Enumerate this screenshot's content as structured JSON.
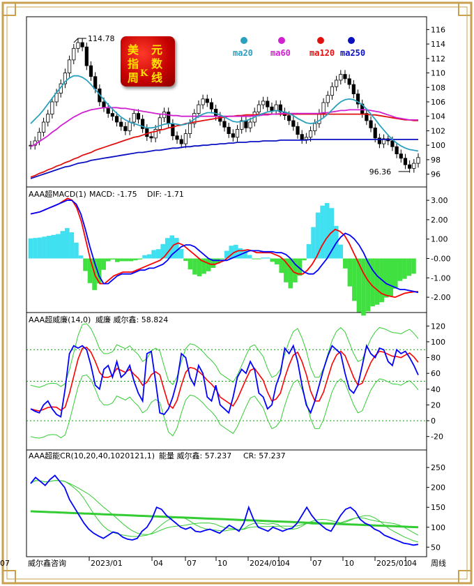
{
  "brand": {
    "logo_chars": [
      "美",
      "元",
      "指",
      "数",
      "周",
      "K",
      "线"
    ]
  },
  "colors": {
    "ma20": "#2aa0bf",
    "ma60": "#d020d0",
    "ma120": "#e01010",
    "ma250": "#0a10c0",
    "macd": "#0000ff",
    "dif": "#ff0000",
    "up": "#000000",
    "grid": "#00a000",
    "frame": "#c8a050"
  },
  "chart_data": [
    {
      "type": "candlestick",
      "legend": [
        {
          "name": "ma20",
          "color": "#2aa0bf"
        },
        {
          "name": "ma60",
          "color": "#d020d0"
        },
        {
          "name": "ma120",
          "color": "#e01010"
        },
        {
          "name": "ma250",
          "color": "#0a10c0"
        }
      ],
      "annotations": {
        "high": "114.78",
        "low": "96.36"
      },
      "y_ticks": [
        "116",
        "114",
        "112",
        "110",
        "108",
        "106",
        "104",
        "102",
        "100",
        "98",
        "96"
      ],
      "ylim": [
        95,
        117
      ],
      "close": [
        100.0,
        100.6,
        101.8,
        103.2,
        104.3,
        106.0,
        107.2,
        108.5,
        110.0,
        111.8,
        113.4,
        114.2,
        113.6,
        111.0,
        109.5,
        107.8,
        106.0,
        105.2,
        104.4,
        104.0,
        103.2,
        102.6,
        102.0,
        103.2,
        104.4,
        103.6,
        102.3,
        101.2,
        101.0,
        102.2,
        103.8,
        104.6,
        103.0,
        101.3,
        100.8,
        100.2,
        101.6,
        103.0,
        104.4,
        105.6,
        106.4,
        105.9,
        105.0,
        104.0,
        103.3,
        102.5,
        101.6,
        101.1,
        102.2,
        103.4,
        102.4,
        103.2,
        104.6,
        105.6,
        106.1,
        105.3,
        104.8,
        105.6,
        104.6,
        104.1,
        103.4,
        102.6,
        101.5,
        100.8,
        101.1,
        102.0,
        103.0,
        104.4,
        105.9,
        106.9,
        108.1,
        109.0,
        109.8,
        109.2,
        108.4,
        107.1,
        105.7,
        104.4,
        103.4,
        102.4,
        101.0,
        100.2,
        100.9,
        100.6,
        99.8,
        98.8,
        98.2,
        97.3,
        96.8,
        97.5,
        98.3
      ],
      "ma20": [
        103.0,
        103.6,
        104.2,
        104.9,
        105.7,
        106.5,
        107.3,
        108.0,
        108.8,
        109.3,
        109.6,
        109.6,
        109.4,
        109.0,
        108.4,
        107.7,
        107.0,
        106.3,
        105.6,
        105.0,
        104.4,
        103.9,
        103.5,
        103.2,
        103.0,
        102.8,
        102.6,
        102.4,
        102.4,
        102.5,
        102.7,
        102.9,
        103.0,
        103.0,
        102.9,
        102.8,
        102.9,
        103.2,
        103.6,
        104.0,
        104.3,
        104.5,
        104.5,
        104.4,
        104.2,
        103.9,
        103.6,
        103.3,
        103.2,
        103.3,
        103.4,
        103.6,
        103.9,
        104.2,
        104.4,
        104.6,
        104.7,
        104.8,
        104.7,
        104.6,
        104.4,
        104.1,
        103.7,
        103.4,
        103.1,
        103.0,
        103.1,
        103.4,
        103.8,
        104.3,
        104.9,
        105.5,
        106.0,
        106.3,
        106.4,
        106.3,
        106.0,
        105.6,
        105.0,
        104.3,
        103.6,
        102.8,
        102.1,
        101.4,
        100.8,
        100.3,
        99.9,
        99.6,
        99.4,
        99.3,
        99.2
      ],
      "ma60": [
        99.8,
        100.1,
        100.5,
        100.9,
        101.3,
        101.8,
        102.2,
        102.7,
        103.1,
        103.5,
        103.9,
        104.2,
        104.5,
        104.7,
        104.9,
        105.0,
        105.1,
        105.2,
        105.2,
        105.2,
        105.2,
        105.1,
        105.1,
        105.0,
        104.9,
        104.8,
        104.7,
        104.6,
        104.5,
        104.4,
        104.3,
        104.3,
        104.2,
        104.1,
        104.1,
        104.0,
        104.0,
        104.0,
        104.0,
        104.0,
        104.0,
        104.0,
        104.0,
        104.0,
        104.0,
        104.0,
        104.0,
        104.0,
        104.0,
        104.0,
        104.0,
        104.0,
        104.1,
        104.1,
        104.2,
        104.2,
        104.3,
        104.3,
        104.4,
        104.4,
        104.4,
        104.4,
        104.4,
        104.4,
        104.4,
        104.4,
        104.4,
        104.4,
        104.5,
        104.5,
        104.6,
        104.7,
        104.8,
        104.8,
        104.9,
        104.9,
        104.9,
        104.9,
        104.9,
        104.8,
        104.7,
        104.6,
        104.4,
        104.2,
        104.0,
        103.8,
        103.7,
        103.6,
        103.5,
        103.5,
        103.5
      ],
      "ma120": [
        95.6,
        95.8,
        96.1,
        96.3,
        96.6,
        96.8,
        97.1,
        97.3,
        97.6,
        97.8,
        98.1,
        98.3,
        98.6,
        98.8,
        99.0,
        99.3,
        99.5,
        99.7,
        99.9,
        100.1,
        100.3,
        100.5,
        100.7,
        100.9,
        101.1,
        101.2,
        101.4,
        101.6,
        101.8,
        101.9,
        102.1,
        102.2,
        102.4,
        102.5,
        102.7,
        102.8,
        103.0,
        103.1,
        103.2,
        103.3,
        103.4,
        103.5,
        103.6,
        103.7,
        103.8,
        103.9,
        104.0,
        104.0,
        104.1,
        104.1,
        104.2,
        104.2,
        104.2,
        104.3,
        104.3,
        104.3,
        104.3,
        104.3,
        104.3,
        104.3,
        104.3,
        104.3,
        104.3,
        104.3,
        104.3,
        104.3,
        104.3,
        104.3,
        104.3,
        104.3,
        104.3,
        104.3,
        104.3,
        104.3,
        104.3,
        104.3,
        104.3,
        104.3,
        104.3,
        104.2,
        104.2,
        104.1,
        104.0,
        103.9,
        103.8,
        103.7,
        103.6,
        103.5,
        103.5,
        103.4,
        103.4
      ],
      "ma250": [
        95.4,
        95.6,
        95.8,
        96.0,
        96.2,
        96.4,
        96.6,
        96.8,
        97.0,
        97.1,
        97.3,
        97.5,
        97.6,
        97.7,
        97.9,
        98.0,
        98.1,
        98.2,
        98.3,
        98.4,
        98.5,
        98.6,
        98.7,
        98.8,
        98.9,
        99.0,
        99.0,
        99.1,
        99.2,
        99.3,
        99.3,
        99.4,
        99.5,
        99.6,
        99.6,
        99.7,
        99.8,
        99.8,
        99.9,
        99.9,
        100.0,
        100.0,
        100.1,
        100.1,
        100.2,
        100.2,
        100.3,
        100.3,
        100.4,
        100.4,
        100.4,
        100.5,
        100.5,
        100.5,
        100.6,
        100.6,
        100.6,
        100.6,
        100.7,
        100.7,
        100.7,
        100.7,
        100.7,
        100.7,
        100.7,
        100.8,
        100.8,
        100.8,
        100.8,
        100.8,
        100.8,
        100.8,
        100.8,
        100.8,
        100.8,
        100.8,
        100.8,
        100.8,
        100.8,
        100.8,
        100.8,
        100.8,
        100.8,
        100.8,
        100.8,
        100.8,
        100.8,
        100.8,
        100.8,
        100.8,
        100.8
      ]
    },
    {
      "type": "line",
      "title": "AAA超MACD(1)",
      "legend_items": [
        {
          "label": "MACD: -1.75",
          "color": "#0000ff"
        },
        {
          "label": "DIF: -1.71",
          "color": "#ff0000"
        }
      ],
      "y_ticks": [
        "3.00",
        "2.00",
        "1.00",
        "-0.00",
        "-1.00",
        "-2.00"
      ],
      "ylim": [
        -2.5,
        3.4
      ],
      "macd": [
        2.3,
        2.35,
        2.4,
        2.5,
        2.6,
        2.7,
        2.8,
        2.9,
        3.0,
        3.0,
        2.8,
        2.3,
        1.5,
        0.6,
        -0.2,
        -0.9,
        -1.3,
        -1.3,
        -1.1,
        -0.9,
        -0.8,
        -0.8,
        -0.8,
        -0.7,
        -0.6,
        -0.6,
        -0.5,
        -0.5,
        -0.4,
        -0.3,
        -0.1,
        0.2,
        0.4,
        0.6,
        0.7,
        0.7,
        0.6,
        0.4,
        0.2,
        0.0,
        -0.1,
        -0.1,
        -0.1,
        -0.1,
        0.0,
        0.1,
        0.2,
        0.3,
        0.4,
        0.4,
        0.4,
        0.35,
        0.35,
        0.35,
        0.3,
        0.3,
        0.2,
        0.0,
        -0.3,
        -0.5,
        -0.7,
        -0.8,
        -0.8,
        -0.6,
        -0.3,
        0.0,
        0.4,
        0.8,
        1.1,
        1.3,
        1.2,
        1.0,
        0.7,
        0.3,
        -0.2,
        -0.6,
        -0.9,
        -1.1,
        -1.3,
        -1.4,
        -1.5,
        -1.6,
        -1.6,
        -1.65,
        -1.7,
        -1.75
      ],
      "dif": [
        2.3,
        2.35,
        2.4,
        2.5,
        2.6,
        2.7,
        2.8,
        2.95,
        3.1,
        3.0,
        2.6,
        1.9,
        0.9,
        -0.1,
        -0.9,
        -1.3,
        -1.3,
        -1.1,
        -0.9,
        -0.8,
        -0.7,
        -0.7,
        -0.7,
        -0.6,
        -0.5,
        -0.4,
        -0.3,
        -0.2,
        -0.1,
        0.1,
        0.4,
        0.7,
        0.8,
        0.7,
        0.5,
        0.3,
        0.1,
        -0.1,
        -0.2,
        -0.3,
        -0.3,
        -0.2,
        -0.1,
        0.1,
        0.3,
        0.4,
        0.4,
        0.45,
        0.4,
        0.3,
        0.3,
        0.3,
        0.3,
        0.2,
        0.1,
        -0.1,
        -0.4,
        -0.7,
        -0.8,
        -0.8,
        -0.6,
        -0.3,
        0.1,
        0.6,
        1.0,
        1.3,
        1.5,
        1.4,
        1.2,
        0.8,
        0.3,
        -0.2,
        -0.7,
        -1.1,
        -1.4,
        -1.6,
        -1.8,
        -1.9,
        -1.95,
        -2.0,
        -1.9,
        -1.8,
        -1.75,
        -1.72,
        -1.71
      ]
    },
    {
      "type": "line",
      "title": "AAA超威廉(14,0)",
      "legend_items": [
        {
          "label": "威廉 威尔鑫: 58.824",
          "color": "#0000ff"
        }
      ],
      "y_ticks": [
        "120",
        "100",
        "80",
        "60",
        "40",
        "20",
        "0",
        "-20"
      ],
      "ylim": [
        -30,
        130
      ],
      "wr": [
        15,
        12,
        10,
        20,
        25,
        15,
        8,
        5,
        40,
        85,
        95,
        92,
        95,
        90,
        70,
        45,
        40,
        65,
        70,
        55,
        75,
        55,
        60,
        70,
        50,
        35,
        25,
        85,
        88,
        50,
        10,
        8,
        15,
        30,
        50,
        85,
        80,
        55,
        45,
        70,
        60,
        30,
        25,
        45,
        20,
        15,
        10,
        30,
        55,
        65,
        60,
        75,
        65,
        35,
        30,
        15,
        20,
        45,
        60,
        92,
        85,
        95,
        75,
        45,
        20,
        10,
        25,
        45,
        65,
        82,
        95,
        90,
        85,
        60,
        40,
        35,
        45,
        70,
        95,
        85,
        80,
        92,
        90,
        75,
        70,
        90,
        85,
        88,
        80,
        70,
        58
      ]
    },
    {
      "type": "line",
      "title": "AAA超能CR(10,20,40,1020121,1)",
      "legend_items": [
        {
          "label": "能量 威尔鑫: 57.237",
          "color": "#0000ff"
        },
        {
          "label": "CR: 57.237",
          "color": "#ff0000"
        }
      ],
      "y_ticks": [
        "250",
        "200",
        "150",
        "100",
        "50"
      ],
      "ylim": [
        40,
        280
      ],
      "cr": [
        210,
        225,
        215,
        205,
        220,
        230,
        215,
        200,
        170,
        150,
        130,
        110,
        95,
        85,
        78,
        72,
        80,
        88,
        85,
        75,
        70,
        68,
        72,
        90,
        100,
        120,
        150,
        145,
        130,
        120,
        110,
        100,
        95,
        100,
        90,
        88,
        92,
        95,
        90,
        85,
        95,
        105,
        98,
        90,
        110,
        150,
        120,
        100,
        95,
        90,
        100,
        95,
        90,
        95,
        98,
        110,
        130,
        150,
        130,
        115,
        105,
        95,
        90,
        110,
        130,
        145,
        150,
        140,
        120,
        110,
        105,
        95,
        90,
        80,
        75,
        70,
        65,
        60,
        58,
        55,
        57
      ]
    }
  ],
  "x_ticks": [
    "威尔鑫咨询",
    "2023/01",
    "04",
    "07",
    "10",
    "2024/01",
    "04",
    "07",
    "10",
    "2025/01",
    "04",
    "07"
  ],
  "period_label": "周线"
}
